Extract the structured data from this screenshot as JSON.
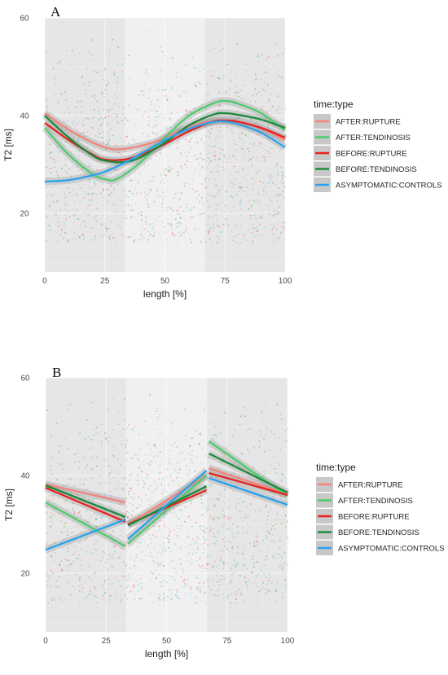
{
  "chart_data": [
    {
      "type": "line",
      "panel_label": "A",
      "xlabel": "length [%]",
      "ylabel": "T2 [ms]",
      "xlim": [
        -1,
        101
      ],
      "ylim": [
        8,
        60
      ],
      "x_ticks": [
        0,
        25,
        50,
        75,
        100
      ],
      "y_ticks": [
        20,
        40,
        60
      ],
      "grid": true,
      "shaded_regions": [
        {
          "from": 0,
          "to": 33.3,
          "shade": "medium"
        },
        {
          "from": 33.3,
          "to": 66.7,
          "shade": "light"
        },
        {
          "from": 66.7,
          "to": 100,
          "shade": "medium"
        }
      ],
      "legend": {
        "title": "time:type",
        "position": "right"
      },
      "smoothing": "continuous",
      "series": [
        {
          "name": "AFTER:RUPTURE",
          "color": "#f4837d",
          "x": [
            0,
            12,
            25,
            33,
            45,
            55,
            65,
            75,
            85,
            92,
            100
          ],
          "values": [
            40.5,
            36.5,
            33.5,
            33.2,
            34.5,
            36.6,
            38.4,
            39.0,
            38.2,
            37.0,
            35.0
          ]
        },
        {
          "name": "AFTER:TENDINOSIS",
          "color": "#4dcc6b",
          "x": [
            0,
            10,
            20,
            25,
            30,
            40,
            50,
            60,
            70,
            75,
            80,
            90,
            100
          ],
          "values": [
            37.5,
            32.0,
            28.0,
            27.0,
            27.0,
            30.5,
            35.5,
            40.0,
            42.5,
            43.0,
            42.5,
            40.5,
            37.0
          ]
        },
        {
          "name": "BEFORE:RUPTURE",
          "color": "#e8211f",
          "x": [
            0,
            10,
            20,
            25,
            33,
            40,
            50,
            60,
            70,
            75,
            80,
            90,
            100
          ],
          "values": [
            38.5,
            35.0,
            32.0,
            31.0,
            31.0,
            32.0,
            34.2,
            36.8,
            38.8,
            39.0,
            38.8,
            37.5,
            35.5
          ]
        },
        {
          "name": "BEFORE:TENDINOSIS",
          "color": "#1a8a3a",
          "x": [
            0,
            10,
            20,
            25,
            33,
            40,
            50,
            60,
            70,
            75,
            80,
            90,
            100
          ],
          "values": [
            40.0,
            35.5,
            31.8,
            30.8,
            30.5,
            31.5,
            34.5,
            38.0,
            40.2,
            40.5,
            40.2,
            39.2,
            37.5
          ]
        },
        {
          "name": "ASYMPTOMATIC:CONTROLS",
          "color": "#29a3ee",
          "x": [
            0,
            10,
            20,
            25,
            33,
            40,
            50,
            60,
            70,
            75,
            80,
            90,
            100
          ],
          "values": [
            26.5,
            26.8,
            27.8,
            28.5,
            30.3,
            32.2,
            35.0,
            37.3,
            38.7,
            38.8,
            38.3,
            36.5,
            33.5
          ]
        }
      ]
    },
    {
      "type": "line",
      "panel_label": "B",
      "xlabel": "length [%]",
      "ylabel": "T2 [ms]",
      "xlim": [
        -1,
        101
      ],
      "ylim": [
        8,
        60
      ],
      "x_ticks": [
        0,
        25,
        50,
        75,
        100
      ],
      "y_ticks": [
        20,
        40,
        60
      ],
      "grid": true,
      "shaded_regions": [
        {
          "from": 0,
          "to": 33.3,
          "shade": "medium"
        },
        {
          "from": 33.3,
          "to": 66.7,
          "shade": "light"
        },
        {
          "from": 66.7,
          "to": 100,
          "shade": "medium"
        }
      ],
      "legend": {
        "title": "time:type",
        "position": "right"
      },
      "smoothing": "piecewise-linear",
      "series": [
        {
          "name": "AFTER:RUPTURE",
          "color": "#f4837d",
          "segments": [
            {
              "x": [
                0,
                33
              ],
              "values": [
                38.2,
                34.5
              ]
            },
            {
              "x": [
                34,
                66.5
              ],
              "values": [
                30.0,
                40.0
              ]
            },
            {
              "x": [
                67.5,
                100
              ],
              "values": [
                41.5,
                36.2
              ]
            }
          ]
        },
        {
          "name": "AFTER:TENDINOSIS",
          "color": "#4dcc6b",
          "segments": [
            {
              "x": [
                0,
                33
              ],
              "values": [
                34.5,
                25.5
              ]
            },
            {
              "x": [
                34,
                66.5
              ],
              "values": [
                26.0,
                40.0
              ]
            },
            {
              "x": [
                67.5,
                100
              ],
              "values": [
                47.0,
                35.8
              ]
            }
          ]
        },
        {
          "name": "BEFORE:RUPTURE",
          "color": "#e8211f",
          "segments": [
            {
              "x": [
                0,
                33
              ],
              "values": [
                37.5,
                30.5
              ]
            },
            {
              "x": [
                34,
                66.5
              ],
              "values": [
                30.0,
                37.0
              ]
            },
            {
              "x": [
                67.5,
                100
              ],
              "values": [
                40.5,
                36.0
              ]
            }
          ]
        },
        {
          "name": "BEFORE:TENDINOSIS",
          "color": "#1a8a3a",
          "segments": [
            {
              "x": [
                0,
                33
              ],
              "values": [
                38.0,
                31.5
              ]
            },
            {
              "x": [
                34,
                66.5
              ],
              "values": [
                29.8,
                37.8
              ]
            },
            {
              "x": [
                67.5,
                100
              ],
              "values": [
                44.5,
                36.5
              ]
            }
          ]
        },
        {
          "name": "ASYMPTOMATIC:CONTROLS",
          "color": "#29a3ee",
          "segments": [
            {
              "x": [
                0,
                33
              ],
              "values": [
                24.8,
                31.0
              ]
            },
            {
              "x": [
                34,
                66.5
              ],
              "values": [
                27.0,
                41.0
              ]
            },
            {
              "x": [
                67.5,
                100
              ],
              "values": [
                39.5,
                34.0
              ]
            }
          ]
        }
      ]
    }
  ]
}
